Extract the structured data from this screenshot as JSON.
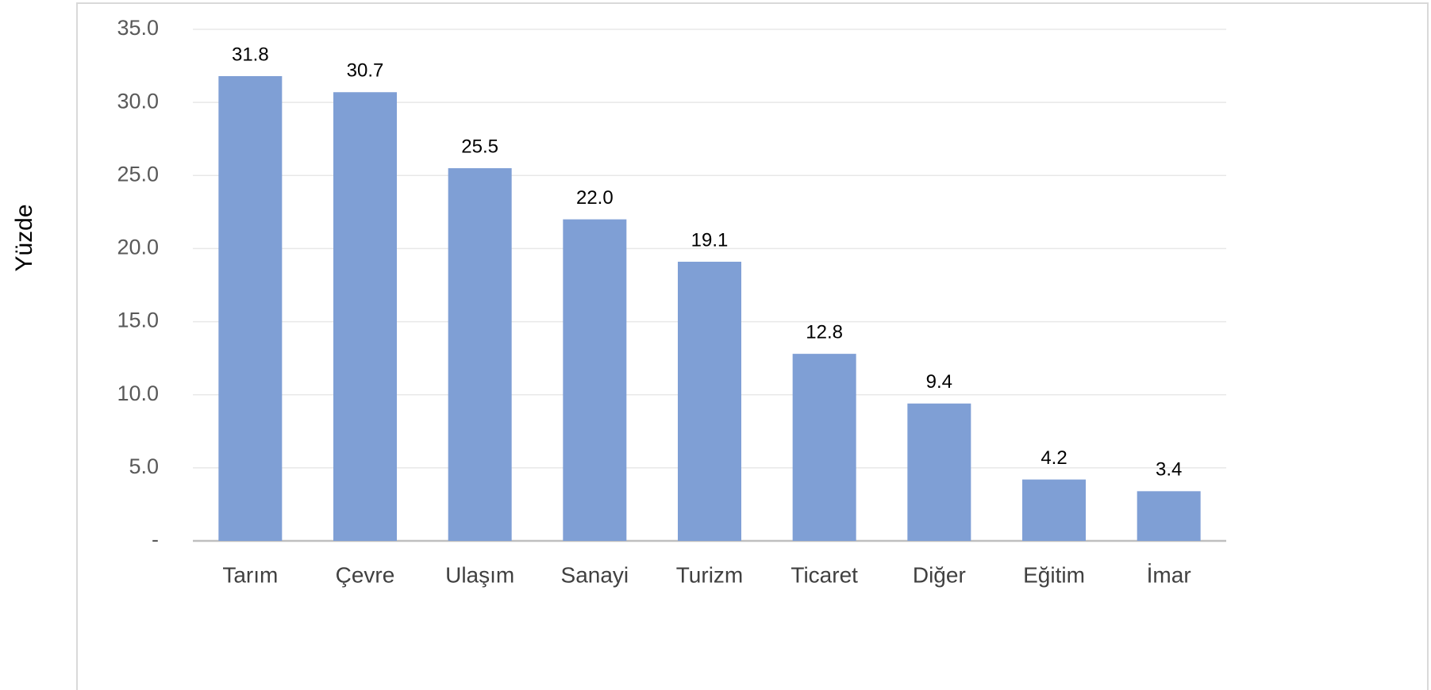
{
  "chart_data": {
    "type": "bar",
    "y_label": "Yüzde",
    "categories": [
      "Tarım",
      "Çevre",
      "Ulaşım",
      "Sanayi",
      "Turizm",
      "Ticaret",
      "Diğer",
      "Eğitim",
      "İmar"
    ],
    "values": [
      31.8,
      30.7,
      25.5,
      22.0,
      19.1,
      12.8,
      9.4,
      4.2,
      3.4
    ],
    "value_labels": [
      "31.8",
      "30.7",
      "25.5",
      "22.0",
      "19.1",
      "12.8",
      "9.4",
      "4.2",
      "3.4"
    ],
    "color": "#7f9fd5",
    "ylim": [
      0,
      35
    ],
    "yticks": [
      {
        "value": 0,
        "label": "-"
      },
      {
        "value": 5,
        "label": "5.0"
      },
      {
        "value": 10,
        "label": "10.0"
      },
      {
        "value": 15,
        "label": "15.0"
      },
      {
        "value": 20,
        "label": "20.0"
      },
      {
        "value": 25,
        "label": "25.0"
      },
      {
        "value": 30,
        "label": "30.0"
      },
      {
        "value": 35,
        "label": "35.0"
      }
    ],
    "grid": true
  }
}
